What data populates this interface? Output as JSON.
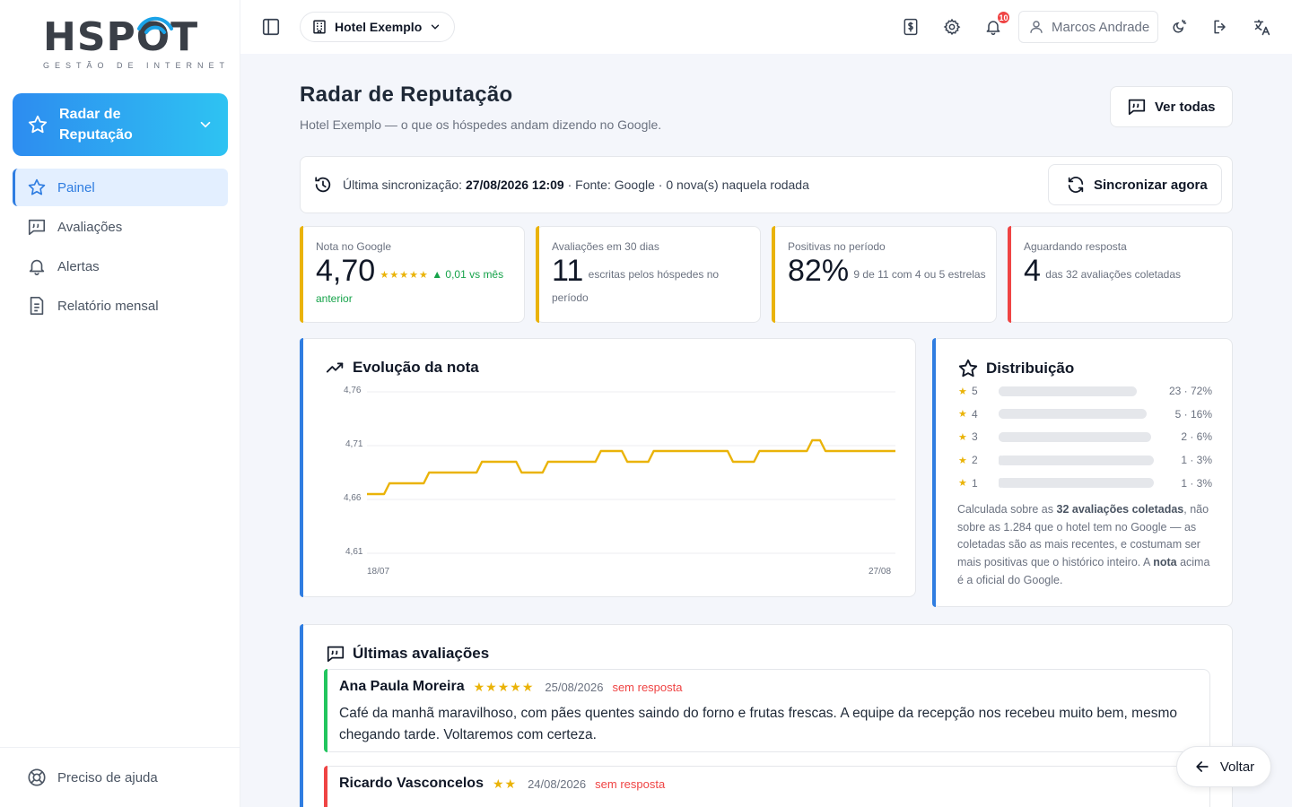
{
  "brand": {
    "name": "HSPOT",
    "tagline": "GESTÃO DE INTERNET"
  },
  "sidebar": {
    "module_label": "Radar de Reputação",
    "items": [
      {
        "label": "Painel",
        "icon": "star-icon",
        "active": true
      },
      {
        "label": "Avaliações",
        "icon": "quote-icon",
        "active": false
      },
      {
        "label": "Alertas",
        "icon": "bell-icon",
        "active": false
      },
      {
        "label": "Relatório mensal",
        "icon": "document-icon",
        "active": false
      }
    ],
    "help_label": "Preciso de ajuda"
  },
  "topbar": {
    "hotel_selector": "Hotel Exemplo",
    "notification_count": "10",
    "user_name": "Marcos Andrade"
  },
  "page": {
    "title": "Radar de Reputação",
    "subtitle": "Hotel Exemplo — o que os hóspedes andam dizendo no Google.",
    "view_all_label": "Ver todas"
  },
  "sync": {
    "label": "Última sincronização:",
    "datetime": "27/08/2026 12:09",
    "details": "· Fonte: Google · 0 nova(s) naquela rodada",
    "button_label": "Sincronizar agora"
  },
  "kpis": [
    {
      "label": "Nota no Google",
      "value": "4,70",
      "stars": "★★★★★",
      "trend": "▲ 0,01 vs",
      "detail": "mês anterior",
      "accent": "#eab308"
    },
    {
      "label": "Avaliações em 30 dias",
      "value": "11",
      "detail": "escritas pelos hóspedes no período",
      "accent": "#eab308"
    },
    {
      "label": "Positivas no período",
      "value": "82%",
      "detail": "9 de 11 com 4 ou 5 estrelas",
      "accent": "#eab308"
    },
    {
      "label": "Aguardando resposta",
      "value": "4",
      "detail": "das 32 avaliações coletadas",
      "accent": "#ef4444"
    }
  ],
  "evolution": {
    "title": "Evolução da nota"
  },
  "chart_data": {
    "type": "line",
    "title": "Evolução da nota",
    "ylim": [
      4.61,
      4.76
    ],
    "y_ticks": [
      "4,76",
      "4,71",
      "4,66",
      "4,61"
    ],
    "x_ticks": [
      "18/07",
      "27/08"
    ],
    "grid": true,
    "color": "#eab308",
    "series": [
      {
        "values": [
          4.665,
          4.665,
          4.675,
          4.675,
          4.675,
          4.685,
          4.685,
          4.685,
          4.685,
          4.695,
          4.695,
          4.695,
          4.685,
          4.685,
          4.695,
          4.695,
          4.695,
          4.695,
          4.705,
          4.705,
          4.695,
          4.695,
          4.705,
          4.705,
          4.705,
          4.705,
          4.705,
          4.705,
          4.695,
          4.695,
          4.705,
          4.705,
          4.705,
          4.705,
          4.715,
          4.705,
          4.705,
          4.705,
          4.705,
          4.705,
          4.705
        ]
      }
    ]
  },
  "distribution": {
    "title": "Distribuição",
    "rows": [
      {
        "stars": "5",
        "count_label": "23 · 72%",
        "fraction": 0.72
      },
      {
        "stars": "4",
        "count_label": "5 · 16%",
        "fraction": 0.16
      },
      {
        "stars": "3",
        "count_label": "2 · 6%",
        "fraction": 0.06
      },
      {
        "stars": "2",
        "count_label": "1 · 3%",
        "fraction": 0.03
      },
      {
        "stars": "1",
        "count_label": "1 · 3%",
        "fraction": 0.03
      }
    ],
    "note_prefix": "Calculada sobre as",
    "note_bold1": "32 avaliações coletadas",
    "note_middle": ", não sobre as 1.284 que o hotel tem no Google — as coletadas são as mais recentes, e costumam ser mais positivas que o histórico inteiro. A",
    "note_bold2": "nota",
    "note_suffix": "acima é a oficial do Google."
  },
  "reviews": {
    "title": "Últimas avaliações",
    "items": [
      {
        "name": "Ana Paula Moreira",
        "stars": "★★★★★",
        "date": "25/08/2026",
        "status": "sem resposta",
        "text": "Café da manhã maravilhoso, com pães quentes saindo do forno e frutas frescas. A equipe da recepção nos recebeu muito bem, mesmo chegando tarde. Voltaremos com certeza.",
        "accent": "#22c55e"
      },
      {
        "name": "Ricardo Vasconcelos",
        "stars": "★★",
        "date": "24/08/2026",
        "status": "sem resposta",
        "text": "",
        "accent": "#ef4444"
      }
    ]
  },
  "back_button": "Voltar"
}
